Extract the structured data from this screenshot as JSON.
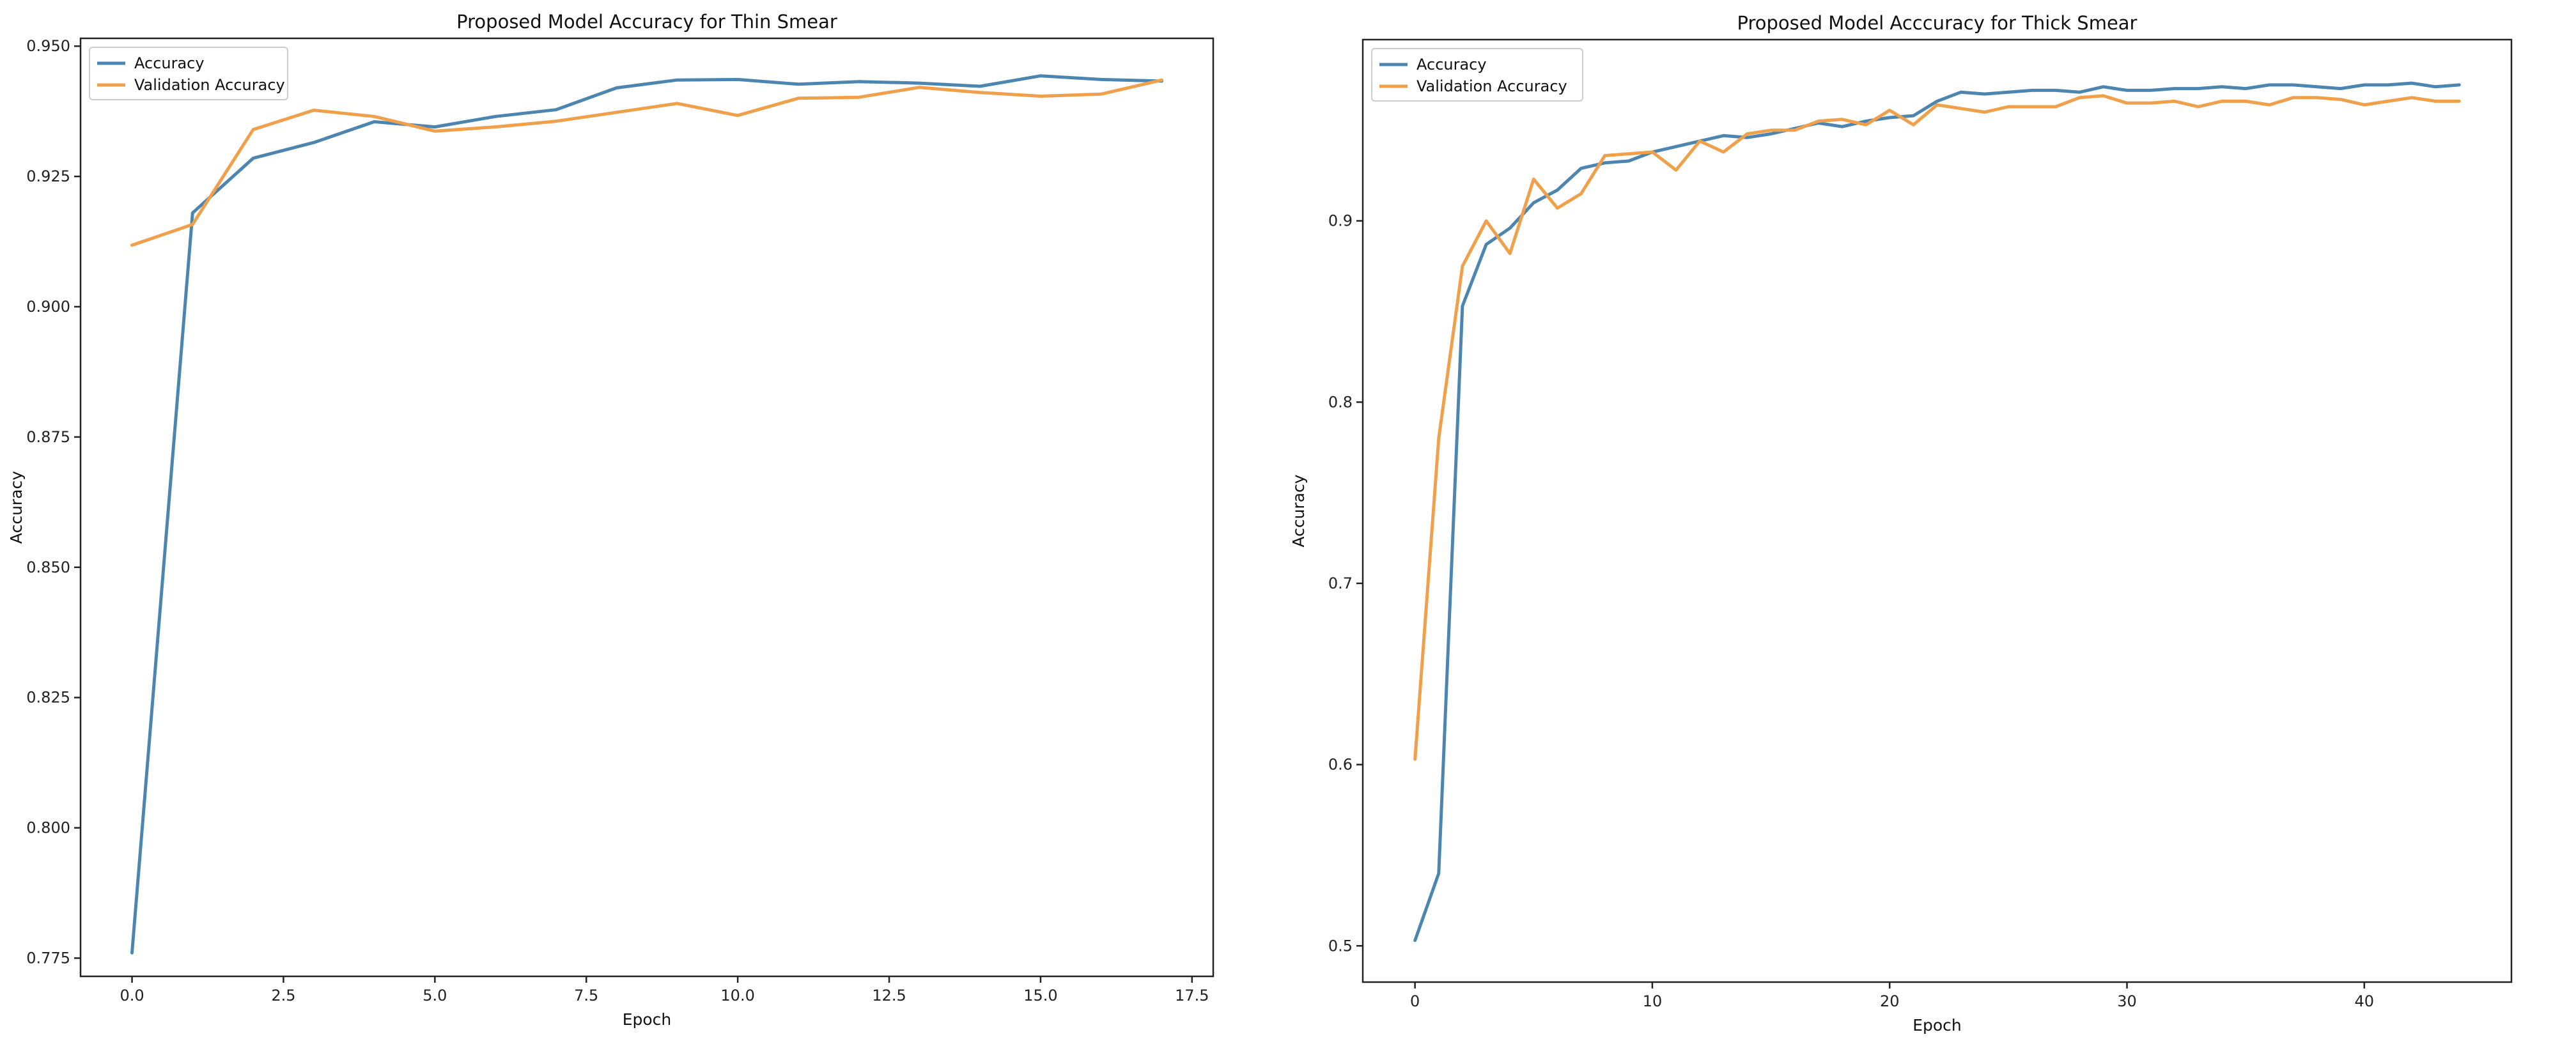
{
  "colors": {
    "accuracy": "#4C86B0",
    "validation": "#F0A04B"
  },
  "chart_data": [
    {
      "type": "line",
      "title": "Proposed Model Accuracy for Thin Smear",
      "xlabel": "Epoch",
      "ylabel": "Accuracy",
      "xlim": [
        -0.85,
        17.85
      ],
      "ylim": [
        0.7715,
        0.9515
      ],
      "xticks": [
        0.0,
        2.5,
        5.0,
        7.5,
        10.0,
        12.5,
        15.0,
        17.5
      ],
      "xtick_labels": [
        "0.0",
        "2.5",
        "5.0",
        "7.5",
        "10.0",
        "12.5",
        "15.0",
        "17.5"
      ],
      "yticks": [
        0.775,
        0.8,
        0.825,
        0.85,
        0.875,
        0.9,
        0.925,
        0.95
      ],
      "ytick_labels": [
        "0.775",
        "0.800",
        "0.825",
        "0.850",
        "0.875",
        "0.900",
        "0.925",
        "0.950"
      ],
      "legend_position": "upper-left",
      "x": [
        0,
        1,
        2,
        3,
        4,
        5,
        6,
        7,
        8,
        9,
        10,
        11,
        12,
        13,
        14,
        15,
        16,
        17
      ],
      "series": [
        {
          "name": "Accuracy",
          "values": [
            0.776,
            0.918,
            0.9285,
            0.9315,
            0.9355,
            0.9345,
            0.9365,
            0.9378,
            0.942,
            0.9435,
            0.9436,
            0.9427,
            0.9432,
            0.9429,
            0.9423,
            0.9443,
            0.9436,
            0.9433
          ]
        },
        {
          "name": "Validation Accuracy",
          "values": [
            0.9118,
            0.9158,
            0.934,
            0.9377,
            0.9365,
            0.9337,
            0.9345,
            0.9356,
            0.9373,
            0.939,
            0.9367,
            0.94,
            0.9402,
            0.9421,
            0.9411,
            0.9404,
            0.9408,
            0.9435
          ]
        }
      ]
    },
    {
      "type": "line",
      "title": "Proposed Model Acccuracy for Thick Smear",
      "xlabel": "Epoch",
      "ylabel": "Accuracy",
      "xlim": [
        -2.2,
        46.2
      ],
      "ylim": [
        0.48,
        1.0
      ],
      "xticks": [
        0,
        10,
        20,
        30,
        40
      ],
      "xtick_labels": [
        "0",
        "10",
        "20",
        "30",
        "40"
      ],
      "yticks": [
        0.5,
        0.6,
        0.7,
        0.8,
        0.9
      ],
      "ytick_labels": [
        "0.5",
        "0.6",
        "0.7",
        "0.8",
        "0.9"
      ],
      "legend_position": "upper-left",
      "x": [
        0,
        1,
        2,
        3,
        4,
        5,
        6,
        7,
        8,
        9,
        10,
        11,
        12,
        13,
        14,
        15,
        16,
        17,
        18,
        19,
        20,
        21,
        22,
        23,
        24,
        25,
        26,
        27,
        28,
        29,
        30,
        31,
        32,
        33,
        34,
        35,
        36,
        37,
        38,
        39,
        40,
        41,
        42,
        43,
        44
      ],
      "series": [
        {
          "name": "Accuracy",
          "values": [
            0.503,
            0.54,
            0.853,
            0.887,
            0.896,
            0.91,
            0.917,
            0.929,
            0.932,
            0.933,
            0.938,
            0.941,
            0.944,
            0.947,
            0.946,
            0.948,
            0.951,
            0.954,
            0.952,
            0.955,
            0.957,
            0.958,
            0.966,
            0.971,
            0.97,
            0.971,
            0.972,
            0.972,
            0.971,
            0.974,
            0.972,
            0.972,
            0.973,
            0.973,
            0.974,
            0.973,
            0.975,
            0.975,
            0.974,
            0.973,
            0.975,
            0.975,
            0.976,
            0.974,
            0.975
          ]
        },
        {
          "name": "Validation Accuracy",
          "values": [
            0.603,
            0.78,
            0.875,
            0.9,
            0.882,
            0.923,
            0.907,
            0.915,
            0.936,
            0.937,
            0.938,
            0.928,
            0.944,
            0.938,
            0.948,
            0.95,
            0.95,
            0.955,
            0.956,
            0.953,
            0.961,
            0.953,
            0.964,
            0.962,
            0.96,
            0.963,
            0.963,
            0.963,
            0.968,
            0.969,
            0.965,
            0.965,
            0.966,
            0.963,
            0.966,
            0.966,
            0.964,
            0.968,
            0.968,
            0.967,
            0.964,
            0.966,
            0.968,
            0.966,
            0.966
          ]
        }
      ]
    }
  ]
}
